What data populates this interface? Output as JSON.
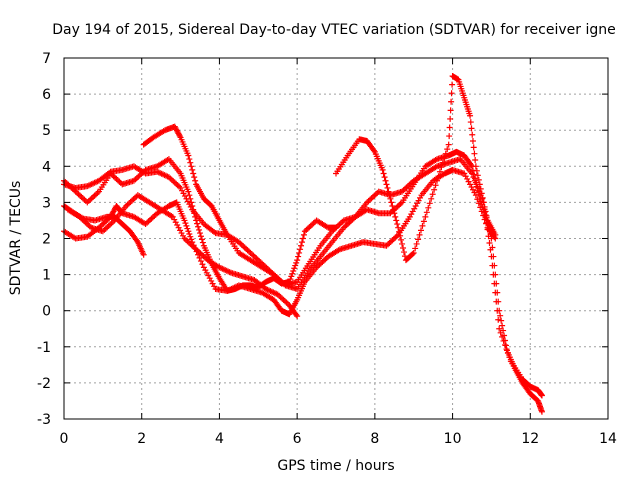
{
  "chart_data": {
    "type": "scatter",
    "title": "Day 194 of 2015, Sidereal Day-to-day VTEC variation (SDTVAR) for receiver igne",
    "xlabel": "GPS time / hours",
    "ylabel": "SDTVAR / TECUs",
    "xlim": [
      0,
      14
    ],
    "ylim": [
      -3,
      7
    ],
    "xticks": [
      0,
      2,
      4,
      6,
      8,
      10,
      12,
      14
    ],
    "yticks": [
      -3,
      -2,
      -1,
      0,
      1,
      2,
      3,
      4,
      5,
      6,
      7
    ],
    "grid": true,
    "marker": "+",
    "color": "#ff0000",
    "series": [
      {
        "name": "trace-1",
        "x": [
          0.0,
          0.3,
          0.6,
          0.9,
          1.2,
          1.35,
          1.5,
          1.8,
          2.1,
          2.4,
          2.7,
          2.9,
          3.1,
          3.3,
          3.6,
          3.9,
          4.2,
          4.5,
          4.8,
          5.1,
          5.4,
          5.6,
          5.8,
          6.0,
          6.2,
          6.5,
          6.8,
          7.1,
          7.4,
          7.7,
          8.0,
          8.3,
          8.6,
          8.9,
          9.2,
          9.5,
          9.8,
          10.0,
          10.3,
          10.6,
          10.9,
          11.1
        ],
        "y": [
          2.2,
          2.0,
          2.05,
          2.3,
          2.6,
          2.9,
          2.7,
          2.6,
          2.4,
          2.7,
          2.9,
          3.0,
          2.5,
          1.9,
          1.2,
          0.6,
          0.55,
          0.7,
          0.6,
          0.5,
          0.3,
          0.0,
          -0.1,
          0.3,
          0.8,
          1.2,
          1.5,
          1.7,
          1.8,
          1.9,
          1.85,
          1.8,
          2.1,
          2.6,
          3.2,
          3.6,
          3.8,
          3.9,
          3.8,
          3.2,
          2.3,
          2.0
        ]
      },
      {
        "name": "trace-2",
        "x": [
          0.0,
          0.3,
          0.6,
          0.9,
          1.2,
          1.5,
          1.8,
          2.1,
          2.4,
          2.7,
          3.0,
          3.3,
          3.6,
          3.9,
          4.2,
          4.5,
          4.8,
          5.1,
          5.4,
          5.7,
          6.0,
          6.3,
          6.6,
          6.9,
          7.2,
          7.5,
          7.8,
          8.1,
          8.4,
          8.7,
          9.0,
          9.3,
          9.6,
          9.9,
          10.2,
          10.5,
          10.8,
          11.0,
          11.2,
          11.5,
          11.8,
          12.0,
          12.2,
          12.3
        ],
        "y": [
          3.5,
          3.4,
          3.45,
          3.6,
          3.85,
          3.9,
          4.0,
          3.8,
          3.85,
          3.7,
          3.4,
          2.8,
          2.4,
          2.15,
          2.1,
          1.9,
          1.6,
          1.3,
          1.0,
          0.7,
          0.6,
          1.1,
          1.5,
          1.9,
          2.3,
          2.6,
          3.0,
          3.3,
          3.2,
          3.3,
          3.6,
          3.8,
          4.0,
          4.1,
          4.2,
          3.8,
          3.0,
          1.5,
          -0.5,
          -1.4,
          -1.9,
          -2.1,
          -2.2,
          -2.35
        ]
      },
      {
        "name": "trace-3",
        "x": [
          0.0,
          0.2,
          0.5,
          0.8,
          1.1,
          1.3,
          1.5,
          1.7,
          1.9,
          2.05
        ],
        "y": [
          2.9,
          2.75,
          2.55,
          2.5,
          2.6,
          2.6,
          2.4,
          2.2,
          1.9,
          1.55
        ]
      },
      {
        "name": "trace-4",
        "x": [
          2.05,
          2.3,
          2.6,
          2.85,
          3.0,
          3.2,
          3.4,
          3.6,
          3.8,
          4.0,
          4.2,
          4.5,
          4.8,
          5.1,
          5.4,
          5.7,
          6.0,
          6.3,
          6.6,
          6.9,
          7.2,
          7.5,
          7.8,
          8.1,
          8.4,
          8.7,
          9.0,
          9.3,
          9.6,
          9.9,
          10.1,
          10.3,
          10.5,
          10.7,
          10.9,
          11.1
        ],
        "y": [
          4.6,
          4.8,
          5.0,
          5.1,
          4.8,
          4.3,
          3.5,
          3.1,
          2.9,
          2.5,
          2.1,
          1.6,
          1.4,
          1.2,
          1.0,
          0.7,
          0.8,
          1.3,
          1.8,
          2.2,
          2.5,
          2.6,
          2.8,
          2.7,
          2.7,
          3.0,
          3.5,
          4.0,
          4.2,
          4.3,
          4.4,
          4.3,
          4.0,
          3.1,
          2.5,
          2.1
        ]
      },
      {
        "name": "trace-5",
        "x": [
          0.0,
          0.3,
          0.6,
          0.9,
          1.2,
          1.5,
          1.8,
          2.1,
          2.4,
          2.7,
          3.0,
          3.2,
          3.4,
          3.6,
          3.8,
          4.0,
          4.2,
          4.4,
          4.6,
          4.8,
          5.0,
          5.2,
          5.4,
          5.6,
          5.8,
          6.0,
          6.2,
          6.5,
          6.8,
          7.0
        ],
        "y": [
          3.6,
          3.3,
          3.0,
          3.3,
          3.8,
          3.5,
          3.6,
          3.9,
          4.0,
          4.2,
          3.8,
          3.3,
          2.5,
          1.8,
          1.3,
          0.9,
          0.55,
          0.6,
          0.7,
          0.7,
          0.65,
          0.8,
          0.9,
          0.75,
          0.8,
          1.4,
          2.2,
          2.5,
          2.3,
          2.3
        ]
      },
      {
        "name": "trace-6",
        "x": [
          7.0,
          7.3,
          7.6,
          7.8,
          8.0,
          8.2,
          8.4,
          8.6,
          8.8,
          9.0,
          9.3,
          9.6,
          9.9,
          10.0,
          10.15,
          10.3,
          10.45,
          10.6,
          10.8,
          11.0,
          11.2,
          11.4,
          11.6,
          11.8,
          12.0,
          12.2,
          12.3
        ],
        "y": [
          3.8,
          4.3,
          4.75,
          4.7,
          4.4,
          3.9,
          3.1,
          2.3,
          1.4,
          1.6,
          2.6,
          3.6,
          4.6,
          6.5,
          6.4,
          5.9,
          5.4,
          4.0,
          3.0,
          2.0,
          0.0,
          -1.1,
          -1.6,
          -2.0,
          -2.3,
          -2.5,
          -2.8
        ]
      },
      {
        "name": "trace-7",
        "x": [
          0.1,
          0.4,
          0.7,
          1.0,
          1.3,
          1.6,
          1.9,
          2.2,
          2.5,
          2.8,
          3.1,
          3.4,
          3.7,
          4.0,
          4.3,
          4.6,
          4.9,
          5.2,
          5.5,
          5.8,
          6.0
        ],
        "y": [
          2.8,
          2.6,
          2.3,
          2.2,
          2.5,
          2.9,
          3.2,
          3.0,
          2.8,
          2.6,
          2.0,
          1.7,
          1.4,
          1.2,
          1.05,
          0.95,
          0.85,
          0.6,
          0.45,
          0.15,
          -0.15
        ]
      }
    ]
  }
}
